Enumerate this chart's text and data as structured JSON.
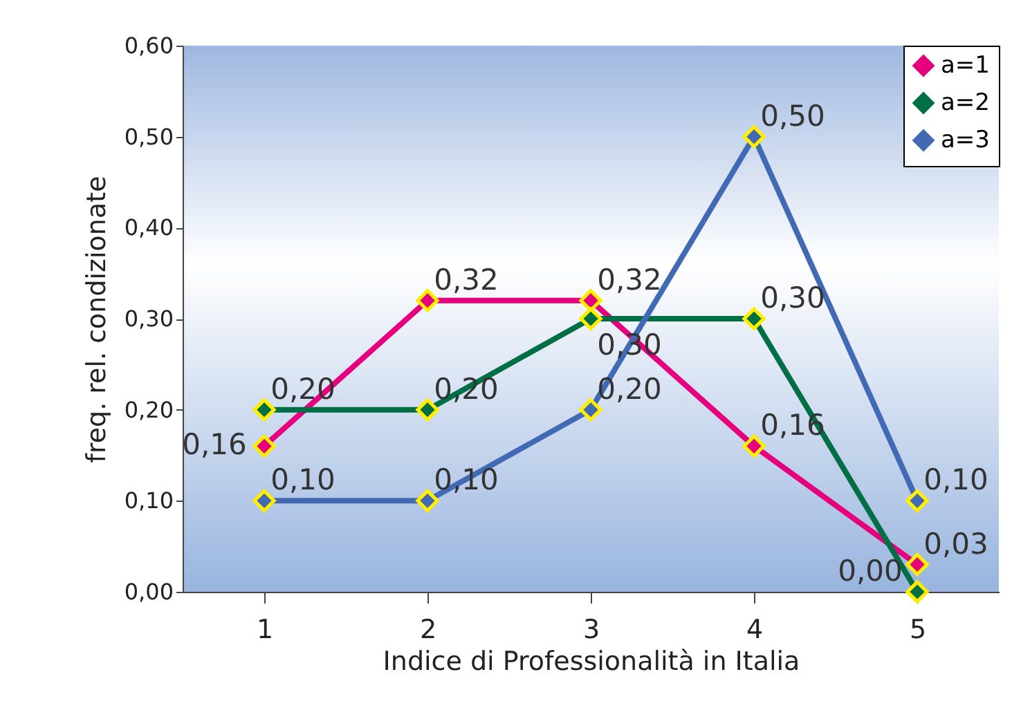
{
  "chart_data": {
    "type": "line",
    "xlabel": "Indice di Professionalità in Italia",
    "ylabel": "freq. rel. condizionate",
    "categories": [
      "1",
      "2",
      "3",
      "4",
      "5"
    ],
    "series": [
      {
        "name": "a=1",
        "color": "#e6007e",
        "values": [
          0.16,
          0.32,
          0.32,
          0.16,
          0.03
        ],
        "value_labels": [
          "0,16",
          "0,32",
          "0,32",
          "0,16",
          "0,03"
        ]
      },
      {
        "name": "a=2",
        "color": "#006f45",
        "values": [
          0.2,
          0.2,
          0.3,
          0.3,
          0.0
        ],
        "value_labels": [
          "0,20",
          "0,20",
          "0,30",
          "0,30",
          "0,00"
        ]
      },
      {
        "name": "a=3",
        "color": "#4169b4",
        "values": [
          0.1,
          0.1,
          0.2,
          0.5,
          0.1
        ],
        "value_labels": [
          "0,10",
          "0,10",
          "0,20",
          "0,50",
          "0,10"
        ]
      }
    ],
    "ylim": [
      0,
      0.6
    ],
    "yticks": [
      {
        "value": 0,
        "label": "0,00"
      },
      {
        "value": 0.1,
        "label": "0,10"
      },
      {
        "value": 0.2,
        "label": "0,20"
      },
      {
        "value": 0.3,
        "label": "0,30"
      },
      {
        "value": 0.4,
        "label": "0,40"
      },
      {
        "value": 0.5,
        "label": "0,50"
      },
      {
        "value": 0.6,
        "label": "0,60"
      }
    ],
    "legend": "top right",
    "marker": "diamond",
    "grid": false,
    "line_style": "solid"
  }
}
